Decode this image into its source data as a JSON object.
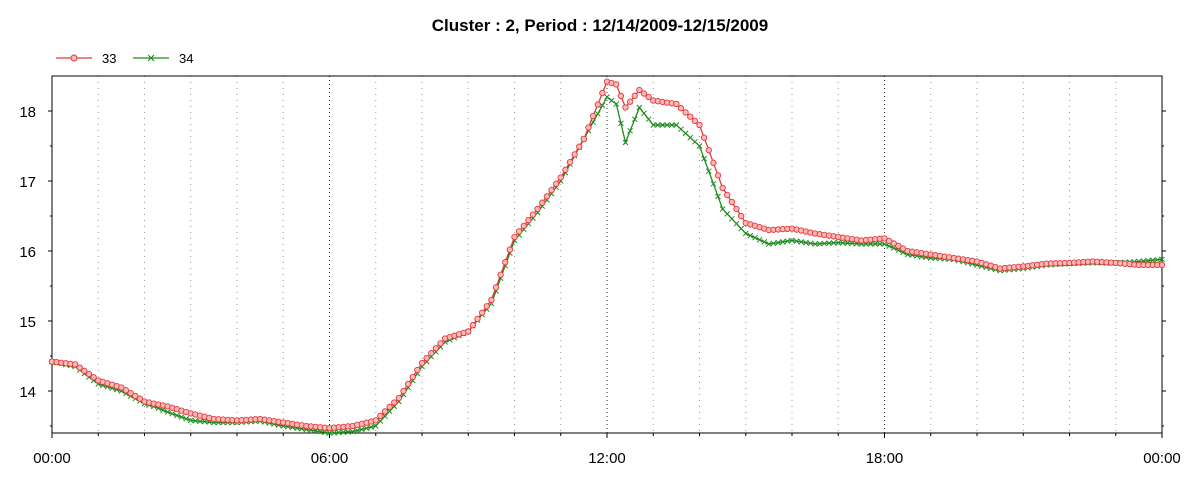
{
  "chart_data": {
    "type": "line",
    "title": "Cluster : 2, Period : 12/14/2009-12/15/2009",
    "xlabel": "",
    "ylabel": "",
    "x_ticks": [
      "00:00",
      "06:00",
      "12:00",
      "18:00",
      "00:00"
    ],
    "x_range_hours": [
      0,
      24
    ],
    "y_ticks": [
      "14",
      "15",
      "16",
      "17",
      "18"
    ],
    "ylim": [
      13.4,
      18.5
    ],
    "grid": "dotted",
    "legend_position": "top-left",
    "colors": {
      "33": "#e03a3a",
      "33_fill": "#ffb8b8",
      "34": "#1e8c1e"
    },
    "series": [
      {
        "name": "33",
        "marker": "circle",
        "points": [
          [
            0,
            14.42
          ],
          [
            0.5,
            14.38
          ],
          [
            1.0,
            14.15
          ],
          [
            1.5,
            14.05
          ],
          [
            2.0,
            13.85
          ],
          [
            2.2,
            13.82
          ],
          [
            2.5,
            13.78
          ],
          [
            3.0,
            13.68
          ],
          [
            3.5,
            13.6
          ],
          [
            4.0,
            13.58
          ],
          [
            4.5,
            13.6
          ],
          [
            5.0,
            13.55
          ],
          [
            5.5,
            13.5
          ],
          [
            6.0,
            13.47
          ],
          [
            6.5,
            13.5
          ],
          [
            7.0,
            13.58
          ],
          [
            7.5,
            13.9
          ],
          [
            8.0,
            14.4
          ],
          [
            8.5,
            14.75
          ],
          [
            9.0,
            14.85
          ],
          [
            9.5,
            15.3
          ],
          [
            10.0,
            16.2
          ],
          [
            10.5,
            16.6
          ],
          [
            11.0,
            17.05
          ],
          [
            11.5,
            17.6
          ],
          [
            12.0,
            18.42
          ],
          [
            12.2,
            18.38
          ],
          [
            12.4,
            18.05
          ],
          [
            12.7,
            18.3
          ],
          [
            13.0,
            18.15
          ],
          [
            13.5,
            18.1
          ],
          [
            14.0,
            17.8
          ],
          [
            14.5,
            16.9
          ],
          [
            15.0,
            16.4
          ],
          [
            15.5,
            16.3
          ],
          [
            16.0,
            16.32
          ],
          [
            16.5,
            16.25
          ],
          [
            17.0,
            16.2
          ],
          [
            17.5,
            16.15
          ],
          [
            18.0,
            16.18
          ],
          [
            18.5,
            16.0
          ],
          [
            19.0,
            15.95
          ],
          [
            19.5,
            15.9
          ],
          [
            20.0,
            15.85
          ],
          [
            20.5,
            15.75
          ],
          [
            21.0,
            15.78
          ],
          [
            21.5,
            15.82
          ],
          [
            22.0,
            15.83
          ],
          [
            22.5,
            15.85
          ],
          [
            23.0,
            15.83
          ],
          [
            23.5,
            15.8
          ],
          [
            24.0,
            15.8
          ]
        ]
      },
      {
        "name": "34",
        "marker": "cross",
        "points": [
          [
            0,
            14.42
          ],
          [
            0.5,
            14.35
          ],
          [
            1.0,
            14.1
          ],
          [
            1.5,
            14.0
          ],
          [
            2.0,
            13.82
          ],
          [
            2.2,
            13.78
          ],
          [
            2.5,
            13.7
          ],
          [
            3.0,
            13.58
          ],
          [
            3.5,
            13.55
          ],
          [
            4.0,
            13.55
          ],
          [
            4.5,
            13.57
          ],
          [
            5.0,
            13.5
          ],
          [
            5.5,
            13.45
          ],
          [
            6.0,
            13.4
          ],
          [
            6.5,
            13.42
          ],
          [
            7.0,
            13.5
          ],
          [
            7.5,
            13.85
          ],
          [
            8.0,
            14.35
          ],
          [
            8.5,
            14.7
          ],
          [
            9.0,
            14.85
          ],
          [
            9.5,
            15.25
          ],
          [
            10.0,
            16.15
          ],
          [
            10.5,
            16.55
          ],
          [
            11.0,
            17.0
          ],
          [
            11.5,
            17.6
          ],
          [
            12.0,
            18.2
          ],
          [
            12.2,
            18.1
          ],
          [
            12.4,
            17.55
          ],
          [
            12.7,
            18.05
          ],
          [
            13.0,
            17.8
          ],
          [
            13.5,
            17.8
          ],
          [
            14.0,
            17.5
          ],
          [
            14.5,
            16.6
          ],
          [
            15.0,
            16.25
          ],
          [
            15.5,
            16.1
          ],
          [
            16.0,
            16.15
          ],
          [
            16.5,
            16.1
          ],
          [
            17.0,
            16.12
          ],
          [
            17.5,
            16.1
          ],
          [
            18.0,
            16.1
          ],
          [
            18.5,
            15.95
          ],
          [
            19.0,
            15.9
          ],
          [
            19.5,
            15.88
          ],
          [
            20.0,
            15.8
          ],
          [
            20.5,
            15.72
          ],
          [
            21.0,
            15.75
          ],
          [
            21.5,
            15.8
          ],
          [
            22.0,
            15.82
          ],
          [
            22.5,
            15.83
          ],
          [
            23.0,
            15.83
          ],
          [
            23.5,
            15.85
          ],
          [
            24.0,
            15.88
          ]
        ]
      }
    ]
  }
}
